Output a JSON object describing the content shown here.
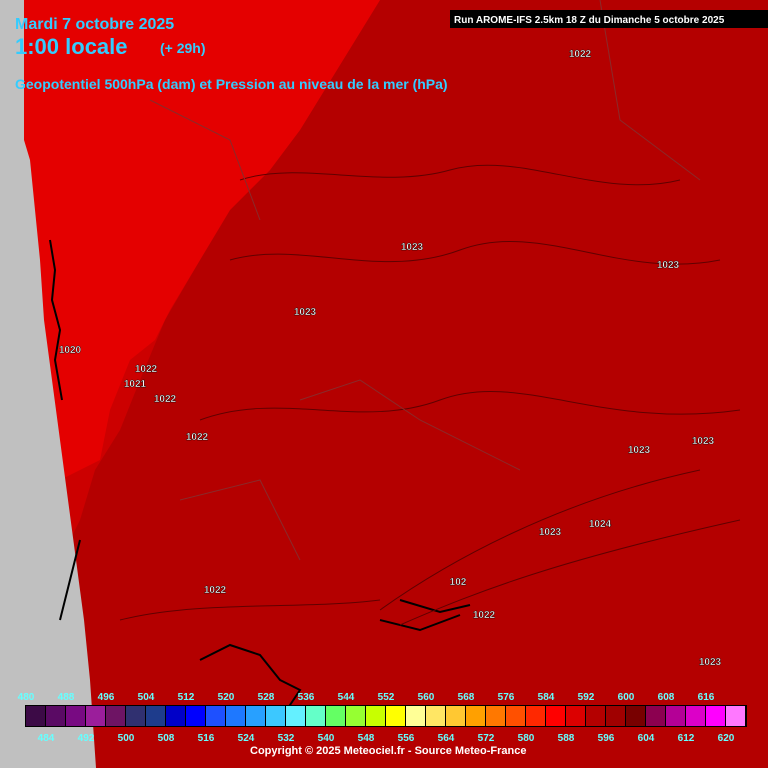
{
  "header": {
    "date": "Mardi 7 octobre 2025",
    "time": "1:00 locale",
    "lead": "(+ 29h)",
    "subtitle": "Geopotentiel 500hPa (dam) et Pression au niveau de la mer (hPa)",
    "run": "Run AROME-IFS 2.5km 18 Z du Dimanche 5 octobre 2025"
  },
  "isobar_labels": [
    "1022",
    "1023",
    "1023",
    "1023",
    "1020",
    "1022",
    "1021",
    "1022",
    "1022",
    "1023",
    "1023",
    "1024",
    "1023",
    "102",
    "1022",
    "1022",
    "1023"
  ],
  "legend": {
    "values": [
      480,
      484,
      488,
      492,
      496,
      500,
      504,
      508,
      512,
      516,
      520,
      524,
      528,
      532,
      536,
      540,
      544,
      548,
      552,
      556,
      560,
      564,
      568,
      572,
      576,
      580,
      584,
      588,
      592,
      596,
      600,
      604,
      608,
      612,
      616,
      620
    ],
    "colors": [
      "#3c0a46",
      "#5a0a64",
      "#780a82",
      "#9b1e9b",
      "#6e1464",
      "#303070",
      "#1e3c8c",
      "#0000c8",
      "#0000ff",
      "#1e50ff",
      "#1e78ff",
      "#28a0ff",
      "#3cc8ff",
      "#64f0ff",
      "#64ffc8",
      "#64ff64",
      "#96ff32",
      "#c8ff00",
      "#ffff00",
      "#ffff96",
      "#ffe664",
      "#ffc832",
      "#ffa000",
      "#ff7800",
      "#ff5000",
      "#ff2800",
      "#ff0000",
      "#dc0000",
      "#b40000",
      "#a00000",
      "#780000",
      "#8c0050",
      "#b40096",
      "#dc00c8",
      "#ff00ff",
      "#ff78ff"
    ]
  },
  "footer": {
    "copyright": "Copyright © 2025 Meteociel.fr - Source Meteo-France"
  }
}
